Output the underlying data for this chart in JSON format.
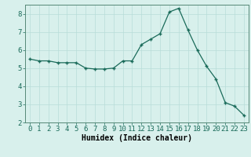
{
  "x": [
    0,
    1,
    2,
    3,
    4,
    5,
    6,
    7,
    8,
    9,
    10,
    11,
    12,
    13,
    14,
    15,
    16,
    17,
    18,
    19,
    20,
    21,
    22,
    23
  ],
  "y": [
    5.5,
    5.4,
    5.4,
    5.3,
    5.3,
    5.3,
    5.0,
    4.95,
    4.95,
    5.0,
    5.4,
    5.4,
    6.3,
    6.6,
    6.9,
    8.1,
    8.3,
    7.1,
    6.0,
    5.1,
    4.4,
    3.1,
    2.9,
    2.4
  ],
  "line_color": "#1a6b5a",
  "marker_color": "#1a6b5a",
  "bg_color": "#d8f0ec",
  "grid_color": "#b8ddd8",
  "xlabel": "Humidex (Indice chaleur)",
  "xlabel_fontsize": 7,
  "tick_fontsize": 6.5,
  "ylim": [
    2,
    8.5
  ],
  "yticks": [
    2,
    3,
    4,
    5,
    6,
    7,
    8
  ],
  "xticks": [
    0,
    1,
    2,
    3,
    4,
    5,
    6,
    7,
    8,
    9,
    10,
    11,
    12,
    13,
    14,
    15,
    16,
    17,
    18,
    19,
    20,
    21,
    22,
    23
  ]
}
